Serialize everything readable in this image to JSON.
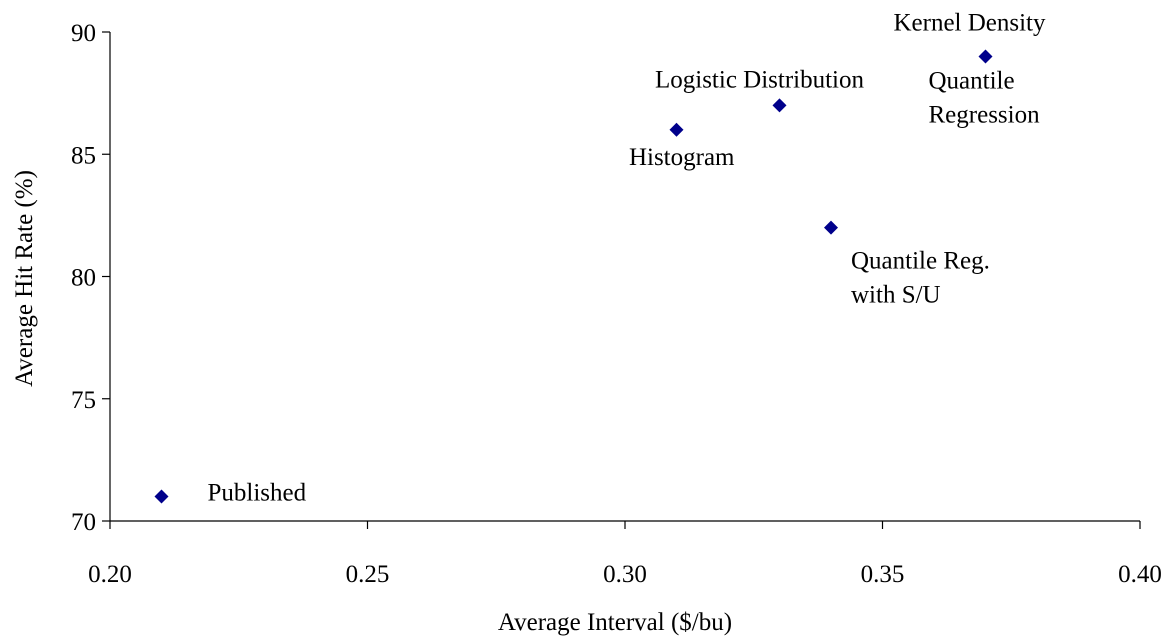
{
  "chart_data": {
    "type": "scatter",
    "title": "",
    "xlabel": "Average Interval ($/bu)",
    "ylabel": "Average Hit Rate (%)",
    "xlim": [
      0.2,
      0.4
    ],
    "ylim": [
      70,
      90
    ],
    "x_ticks": [
      "0.20",
      "0.25",
      "0.30",
      "0.35",
      "0.40"
    ],
    "y_ticks": [
      "70",
      "75",
      "80",
      "85",
      "90"
    ],
    "grid": false,
    "legend": "none",
    "marker": "diamond",
    "marker_color": "#00008B",
    "points": [
      {
        "x": 0.21,
        "y": 71,
        "label": [
          "Published"
        ],
        "label_position": "right"
      },
      {
        "x": 0.31,
        "y": 86,
        "label": [
          "Histogram"
        ],
        "label_position": "below-left"
      },
      {
        "x": 0.33,
        "y": 87,
        "label": [
          "Logistic Distribution"
        ],
        "label_position": "above"
      },
      {
        "x": 0.34,
        "y": 82,
        "label": [
          "Quantile Reg.",
          "with S/U"
        ],
        "label_position": "below-right"
      },
      {
        "x": 0.37,
        "y": 89,
        "label": [
          "Kernel Density"
        ],
        "label_position": "above"
      },
      {
        "x": 0.37,
        "y": 89,
        "label": [
          "Quantile",
          "Regression"
        ],
        "label_position": "below-right"
      }
    ]
  }
}
